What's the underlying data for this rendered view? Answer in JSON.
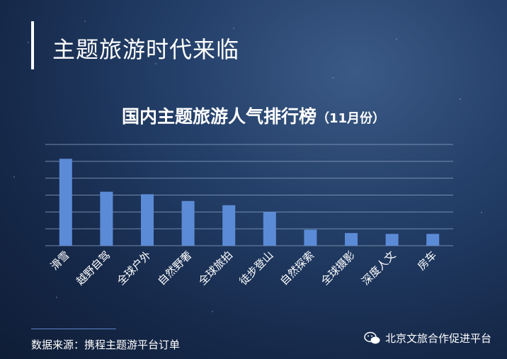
{
  "header": {
    "title": "主题旅游时代来临"
  },
  "chart_data": {
    "type": "bar",
    "title": "国内主题旅游人气排行榜",
    "subtitle": "（11月份）",
    "categories": [
      "滑雪",
      "越野自驾",
      "全球户外",
      "自然野奢",
      "全球旅拍",
      "徒步登山",
      "自然探索",
      "全球摄影",
      "深度人文",
      "房车"
    ],
    "values": [
      10.3,
      6.4,
      6.1,
      5.3,
      4.8,
      4.0,
      1.9,
      1.5,
      1.4,
      1.4
    ],
    "ylim": [
      0,
      12
    ],
    "grid": true,
    "bar_color": "#5b8bd6"
  },
  "footer": {
    "source": "数据来源：携程主题游平台订单",
    "brand": "北京文旅合作促进平台",
    "brand_icon": "wechat-icon"
  }
}
